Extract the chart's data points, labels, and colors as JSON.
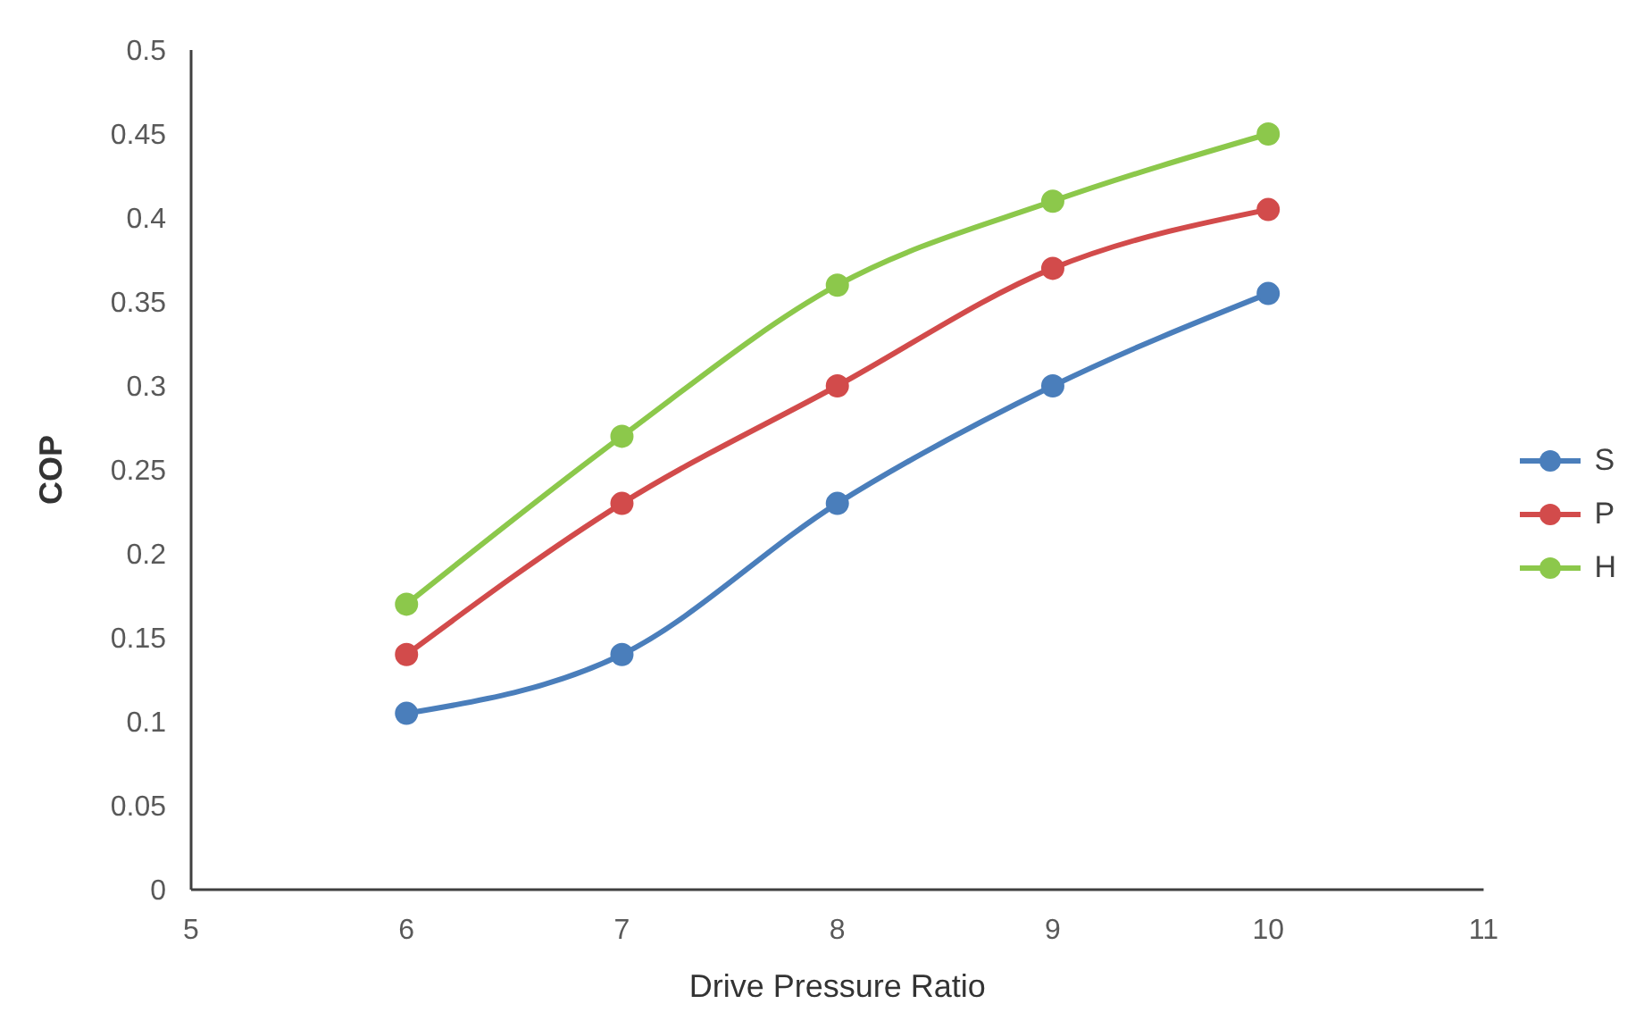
{
  "chart_data": {
    "type": "line",
    "xlabel": "Drive Pressure Ratio",
    "ylabel": "COP",
    "x": [
      6,
      7,
      8,
      9,
      10
    ],
    "series": [
      {
        "name": "S",
        "color": "#4a7ebb",
        "values": [
          0.105,
          0.14,
          0.23,
          0.3,
          0.355
        ]
      },
      {
        "name": "P",
        "color": "#d24b4b",
        "values": [
          0.14,
          0.23,
          0.3,
          0.37,
          0.405
        ]
      },
      {
        "name": "H",
        "color": "#8cc84b",
        "values": [
          0.17,
          0.27,
          0.36,
          0.41,
          0.45
        ]
      }
    ],
    "xlim": [
      5,
      11
    ],
    "xticks": [
      5,
      6,
      7,
      8,
      9,
      10,
      11
    ],
    "ylim": [
      0,
      0.5
    ],
    "yticks": [
      0,
      0.05,
      0.1,
      0.15,
      0.2,
      0.25,
      0.3,
      0.35,
      0.4,
      0.45,
      0.5
    ],
    "grid": false,
    "legend": "right",
    "marker": "circle",
    "line_style": "solid"
  }
}
